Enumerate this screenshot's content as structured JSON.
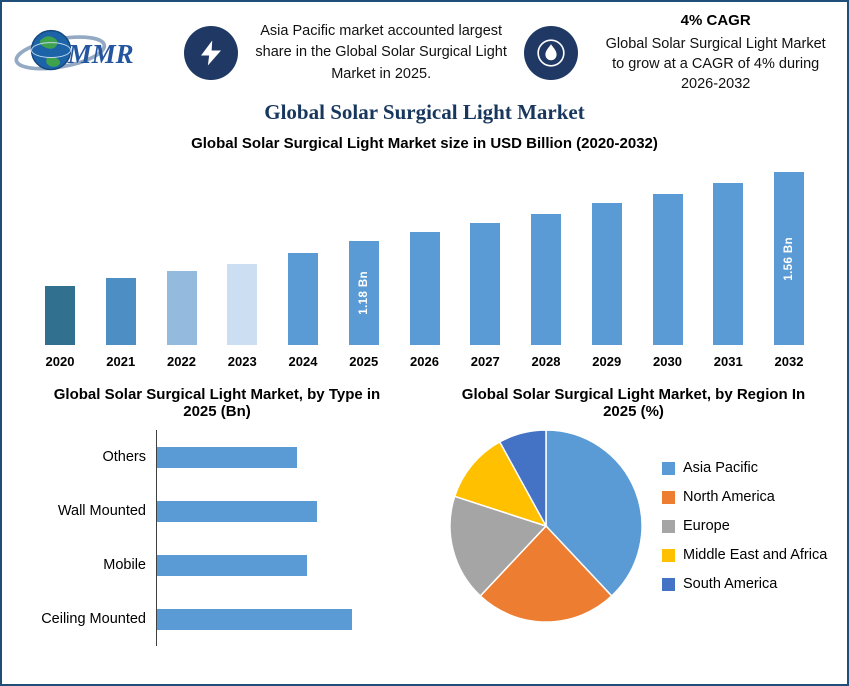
{
  "page": {
    "border_color": "#1F4E79",
    "background": "#FFFFFF",
    "accent_navy": "#1F3864"
  },
  "header": {
    "logo_text": "MMR",
    "callout_left": {
      "icon": "lightning-bolt",
      "text": "Asia Pacific market accounted largest share in the Global Solar Surgical Light Market in 2025."
    },
    "callout_right": {
      "icon": "flame",
      "heading": "4% CAGR",
      "text": "Global Solar Surgical Light Market to grow at a CAGR of 4% during 2026-2032"
    }
  },
  "title": "Global Solar Surgical Light Market",
  "chart_data": [
    {
      "type": "bar",
      "title": "Global Solar Surgical Light Market size in USD Billion (2020-2032)",
      "categories": [
        "2020",
        "2021",
        "2022",
        "2023",
        "2024",
        "2025",
        "2026",
        "2027",
        "2028",
        "2029",
        "2030",
        "2031",
        "2032"
      ],
      "values": [
        0.93,
        0.97,
        1.01,
        1.05,
        1.11,
        1.18,
        1.23,
        1.28,
        1.33,
        1.39,
        1.44,
        1.5,
        1.56
      ],
      "bar_labels": [
        "",
        "",
        "",
        "",
        "",
        "1.18 Bn",
        "",
        "",
        "",
        "",
        "",
        "",
        "1.56 Bn"
      ],
      "colors": [
        "#31708E",
        "#4D8FC4",
        "#94BBDE",
        "#CCDEF2",
        "#5B9BD5",
        "#5B9BD5",
        "#5B9BD5",
        "#5B9BD5",
        "#5B9BD5",
        "#5B9BD5",
        "#5B9BD5",
        "#5B9BD5",
        "#5B9BD5"
      ],
      "unit": "USD Billion",
      "ylim": [
        0,
        1.8
      ],
      "grid": false,
      "legend": false
    },
    {
      "type": "bar",
      "orientation": "horizontal",
      "title": "Global Solar Surgical Light Market, by Type in 2025 (Bn)",
      "categories": [
        "Others",
        "Wall Mounted",
        "Mobile",
        "Ceiling Mounted"
      ],
      "values": [
        0.28,
        0.32,
        0.3,
        0.39
      ],
      "color": "#5B9BD5",
      "unit": "Bn",
      "grid": false,
      "legend": false
    },
    {
      "type": "pie",
      "title": "Global Solar Surgical Light Market, by Region In 2025 (%)",
      "labels": [
        "Asia Pacific",
        "North America",
        "Europe",
        "Middle East and Africa",
        "South America"
      ],
      "values": [
        38,
        24,
        18,
        12,
        8
      ],
      "colors": [
        "#5B9BD5",
        "#ED7D31",
        "#A5A5A5",
        "#FFC000",
        "#4472C4"
      ],
      "legend_position": "right",
      "start_angle_deg": -90
    }
  ]
}
